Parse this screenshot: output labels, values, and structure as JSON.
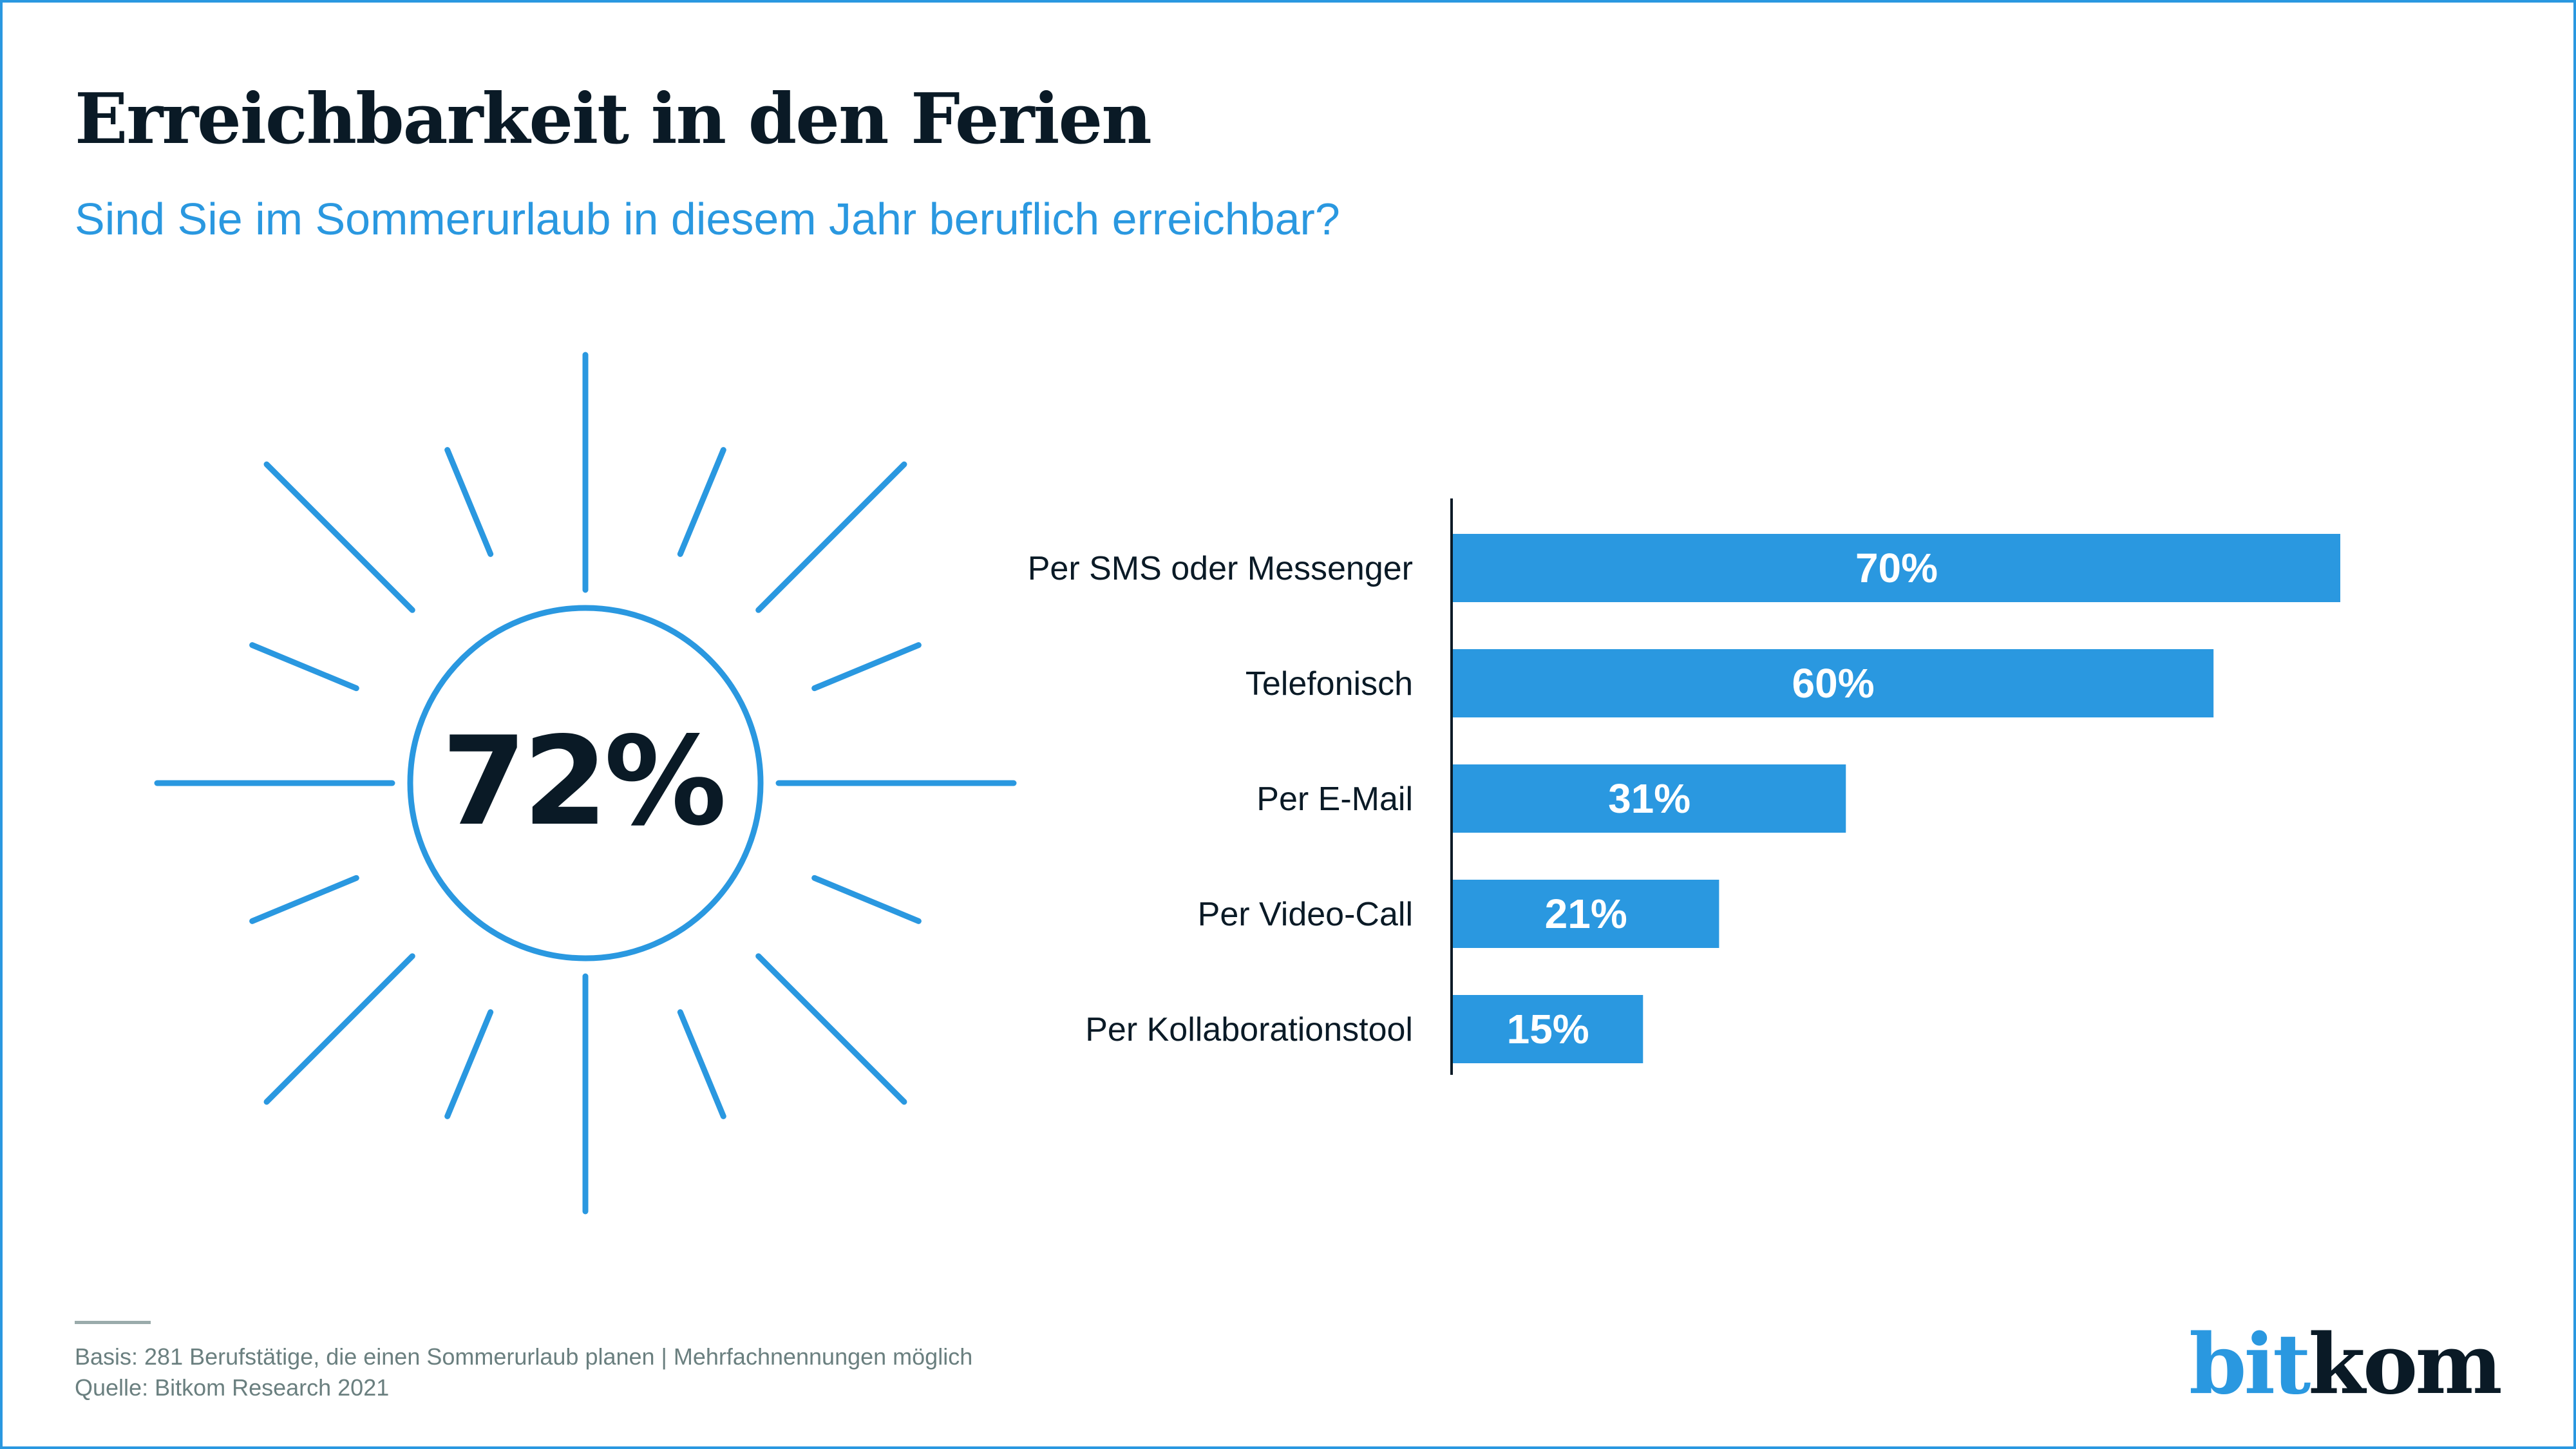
{
  "header": {
    "title": "Erreichbarkeit in den Ferien",
    "subtitle": "Sind Sie im Sommerurlaub in diesem Jahr beruflich erreichbar?"
  },
  "highlight": {
    "value_label": "72%",
    "value": 72,
    "icon": "sun-icon"
  },
  "colors": {
    "accent": "#2a98e0",
    "text_dark": "#0a1a26",
    "footnote": "#6a7f7f"
  },
  "chart_data": {
    "type": "bar",
    "orientation": "horizontal",
    "title": "Sind Sie im Sommerurlaub in diesem Jahr beruflich erreichbar?",
    "categories": [
      "Per SMS oder Messenger",
      "Telefonisch",
      "Per E-Mail",
      "Per Video-Call",
      "Per Kollaborationstool"
    ],
    "values": [
      70,
      60,
      31,
      21,
      15
    ],
    "value_labels": [
      "70%",
      "60%",
      "31%",
      "21%",
      "15%"
    ],
    "unit": "%",
    "xlabel": "",
    "ylabel": "",
    "xlim": [
      0,
      70
    ],
    "grid": false,
    "legend": "none"
  },
  "footer": {
    "basis": "Basis: 281 Berufstätige, die einen Sommerurlaub planen | Mehrfachnennungen möglich",
    "source": "Quelle: Bitkom Research 2021"
  },
  "logo": {
    "part1": "bit",
    "part2": "kom"
  }
}
